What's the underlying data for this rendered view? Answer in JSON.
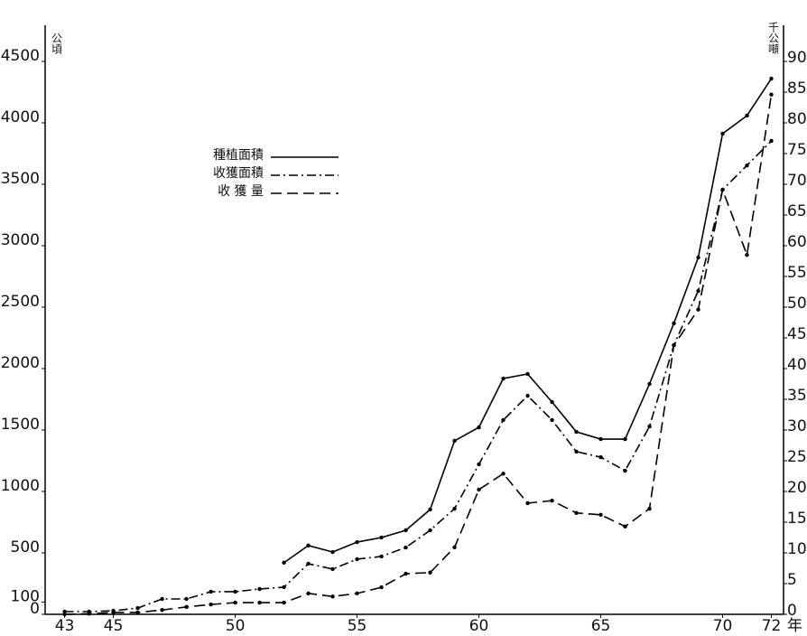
{
  "chart_data": {
    "type": "line",
    "y_label": "公頃",
    "y2_label": "千公噸",
    "x_label": "年",
    "x": [
      43,
      44,
      45,
      46,
      47,
      48,
      49,
      50,
      51,
      52,
      53,
      54,
      55,
      56,
      57,
      58,
      59,
      60,
      61,
      62,
      63,
      64,
      65,
      66,
      67,
      68,
      69,
      70,
      71,
      72
    ],
    "xlim": [
      42.2,
      72.5
    ],
    "xticks": [
      43,
      45,
      50,
      55,
      60,
      65,
      70,
      72
    ],
    "ylim": [
      0,
      4500
    ],
    "yticks": [
      0,
      100,
      500,
      1000,
      1500,
      2000,
      2500,
      3000,
      3500,
      4000,
      4500
    ],
    "y2lim": [
      0,
      90
    ],
    "y2ticks": [
      0,
      5,
      10,
      15,
      20,
      25,
      30,
      35,
      40,
      45,
      50,
      55,
      60,
      65,
      70,
      75,
      80,
      85,
      90
    ],
    "series": [
      {
        "name": "種植面積",
        "color": "#000",
        "linestyle": "solid",
        "values": [
          null,
          null,
          null,
          null,
          null,
          null,
          null,
          null,
          null,
          420,
          560,
          507,
          588,
          625,
          684,
          853,
          1412,
          1522,
          1919,
          1956,
          1728,
          1485,
          1426,
          1426,
          1875,
          2368,
          2904,
          3912,
          4059,
          4360
        ]
      },
      {
        "name": "收獲面積",
        "color": "#000",
        "linestyle": "dashdot",
        "values": [
          22,
          22,
          29,
          51,
          125,
          125,
          184,
          184,
          206,
          221,
          412,
          368,
          449,
          471,
          544,
          684,
          860,
          1221,
          1581,
          1779,
          1581,
          1324,
          1279,
          1169,
          1529,
          2191,
          2632,
          3456,
          3654,
          3853
        ]
      },
      {
        "name": "收 獲 量",
        "color": "#000",
        "linestyle": "dashed",
        "axis": "y2",
        "values": [
          0,
          0.1,
          0.3,
          0.3,
          0.7,
          1.2,
          1.6,
          1.9,
          1.9,
          1.9,
          3.4,
          2.9,
          3.4,
          4.4,
          6.6,
          6.8,
          10.9,
          20.3,
          22.9,
          18.1,
          18.5,
          16.5,
          16.2,
          14.3,
          17.2,
          43.8,
          49.6,
          69.1,
          58.5,
          84.6
        ]
      }
    ]
  }
}
